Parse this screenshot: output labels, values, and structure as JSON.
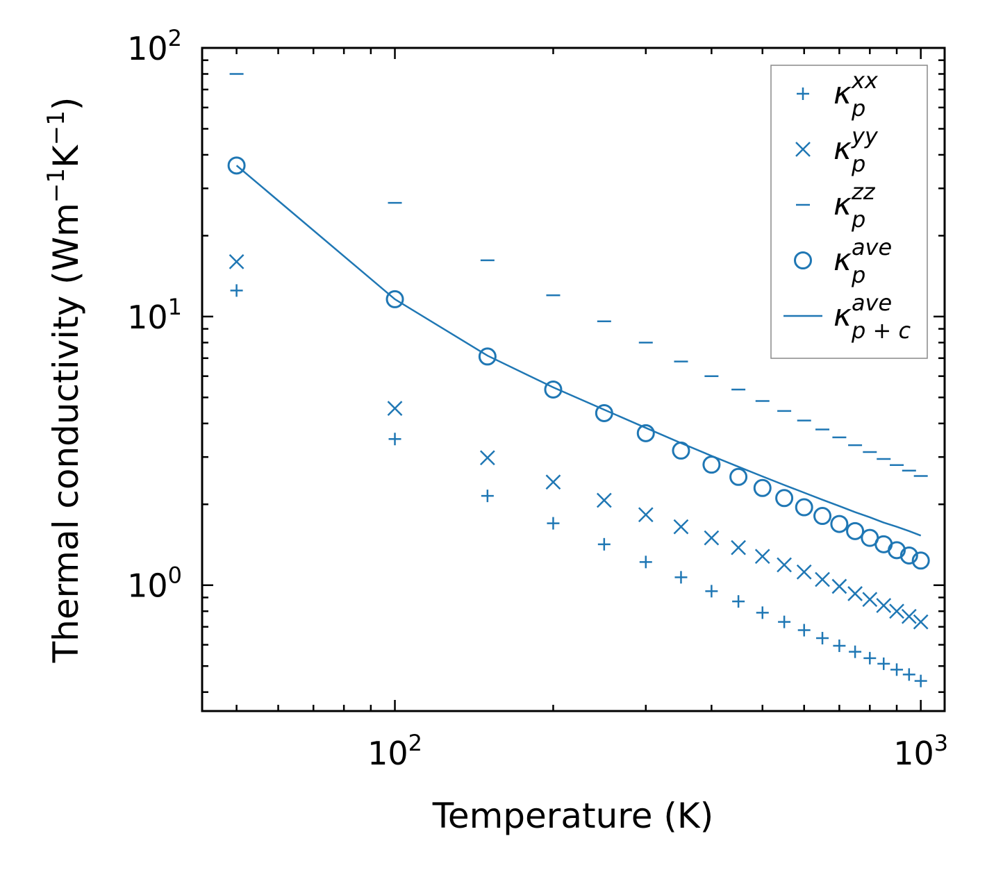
{
  "chart_data": {
    "type": "scatter",
    "xscale": "log",
    "yscale": "log",
    "xlabel": "Temperature (K)",
    "ylabel_parts": {
      "base": "Thermal conductivity (Wm",
      "sup1": "−1",
      "mid": "K",
      "sup2": "−1",
      "end": ")"
    },
    "xlim": [
      43,
      1110
    ],
    "ylim": [
      0.34,
      100
    ],
    "x_ticks": [
      {
        "value": 100,
        "base": "10",
        "exp": "2"
      },
      {
        "value": 1000,
        "base": "10",
        "exp": "3"
      }
    ],
    "y_ticks": [
      {
        "value": 1,
        "base": "10",
        "exp": "0"
      },
      {
        "value": 10,
        "base": "10",
        "exp": "1"
      },
      {
        "value": 100,
        "base": "10",
        "exp": "2"
      }
    ],
    "color": "#1f77b4",
    "x": [
      50,
      100,
      150,
      200,
      250,
      300,
      350,
      400,
      450,
      500,
      550,
      600,
      650,
      700,
      750,
      800,
      850,
      900,
      950,
      1000
    ],
    "series": [
      {
        "name": "kappa_p_xx",
        "marker": "plus",
        "legend_base": "κ",
        "legend_sup": "xx",
        "legend_sub": "p",
        "values": [
          12.5,
          3.5,
          2.15,
          1.7,
          1.42,
          1.22,
          1.07,
          0.95,
          0.87,
          0.79,
          0.73,
          0.68,
          0.635,
          0.595,
          0.565,
          0.535,
          0.51,
          0.485,
          0.465,
          0.44
        ]
      },
      {
        "name": "kappa_p_yy",
        "marker": "x",
        "legend_base": "κ",
        "legend_sup": "yy",
        "legend_sub": "p",
        "values": [
          16.0,
          4.55,
          2.98,
          2.42,
          2.07,
          1.83,
          1.65,
          1.5,
          1.38,
          1.28,
          1.19,
          1.12,
          1.05,
          0.99,
          0.93,
          0.885,
          0.84,
          0.8,
          0.765,
          0.73
        ]
      },
      {
        "name": "kappa_p_zz",
        "marker": "hline",
        "legend_base": "κ",
        "legend_sup": "zz",
        "legend_sub": "p",
        "values": [
          80.0,
          26.5,
          16.2,
          12.0,
          9.6,
          8.0,
          6.8,
          6.0,
          5.35,
          4.85,
          4.45,
          4.1,
          3.8,
          3.55,
          3.32,
          3.13,
          2.95,
          2.8,
          2.67,
          2.55
        ]
      },
      {
        "name": "kappa_p_ave",
        "marker": "circle",
        "legend_base": "κ",
        "legend_sup": "ave",
        "legend_sub": "p",
        "values": [
          36.5,
          11.6,
          7.1,
          5.35,
          4.37,
          3.68,
          3.17,
          2.81,
          2.53,
          2.3,
          2.11,
          1.95,
          1.81,
          1.69,
          1.59,
          1.5,
          1.42,
          1.35,
          1.29,
          1.235
        ]
      },
      {
        "name": "kappa_pc_ave",
        "marker": "line",
        "legend_base": "κ",
        "legend_sup": "ave",
        "legend_sub": "p + c",
        "values": [
          36.5,
          11.6,
          7.15,
          5.45,
          4.5,
          3.85,
          3.38,
          3.03,
          2.76,
          2.54,
          2.36,
          2.21,
          2.08,
          1.97,
          1.87,
          1.79,
          1.71,
          1.65,
          1.59,
          1.53
        ]
      }
    ]
  }
}
